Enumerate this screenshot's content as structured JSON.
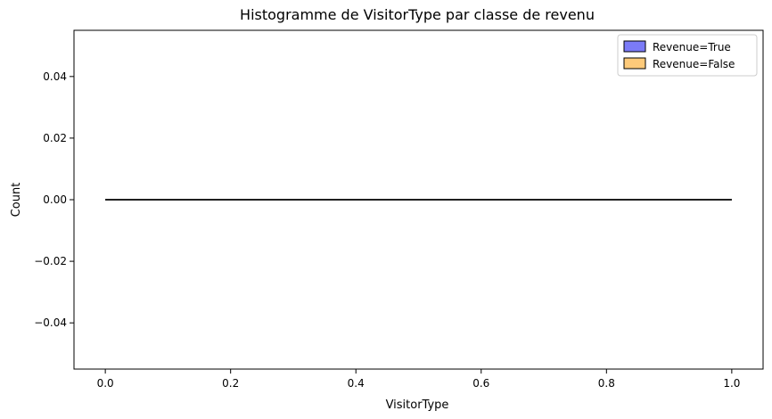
{
  "chart_data": {
    "type": "bar",
    "title": "Histogramme de VisitorType par classe de revenu",
    "xlabel": "VisitorType",
    "ylabel": "Count",
    "xlim": [
      -0.05,
      1.05
    ],
    "ylim": [
      -0.055,
      0.055
    ],
    "xticks": [
      0.0,
      0.2,
      0.4,
      0.6,
      0.8,
      1.0
    ],
    "xtick_labels": [
      "0.0",
      "0.2",
      "0.4",
      "0.6",
      "0.8",
      "1.0"
    ],
    "yticks": [
      -0.04,
      -0.02,
      0.0,
      0.02,
      0.04
    ],
    "ytick_labels": [
      "−0.04",
      "−0.02",
      "0.00",
      "0.02",
      "0.04"
    ],
    "grid": false,
    "legend_position": "top-right",
    "series": [
      {
        "name": "Revenue=True",
        "color": "#7b7bf7",
        "x": [
          0.0,
          1.0
        ],
        "values": [
          0,
          0
        ]
      },
      {
        "name": "Revenue=False",
        "color": "#fdca7a",
        "x": [
          0.0,
          1.0
        ],
        "values": [
          0,
          0
        ]
      }
    ]
  }
}
